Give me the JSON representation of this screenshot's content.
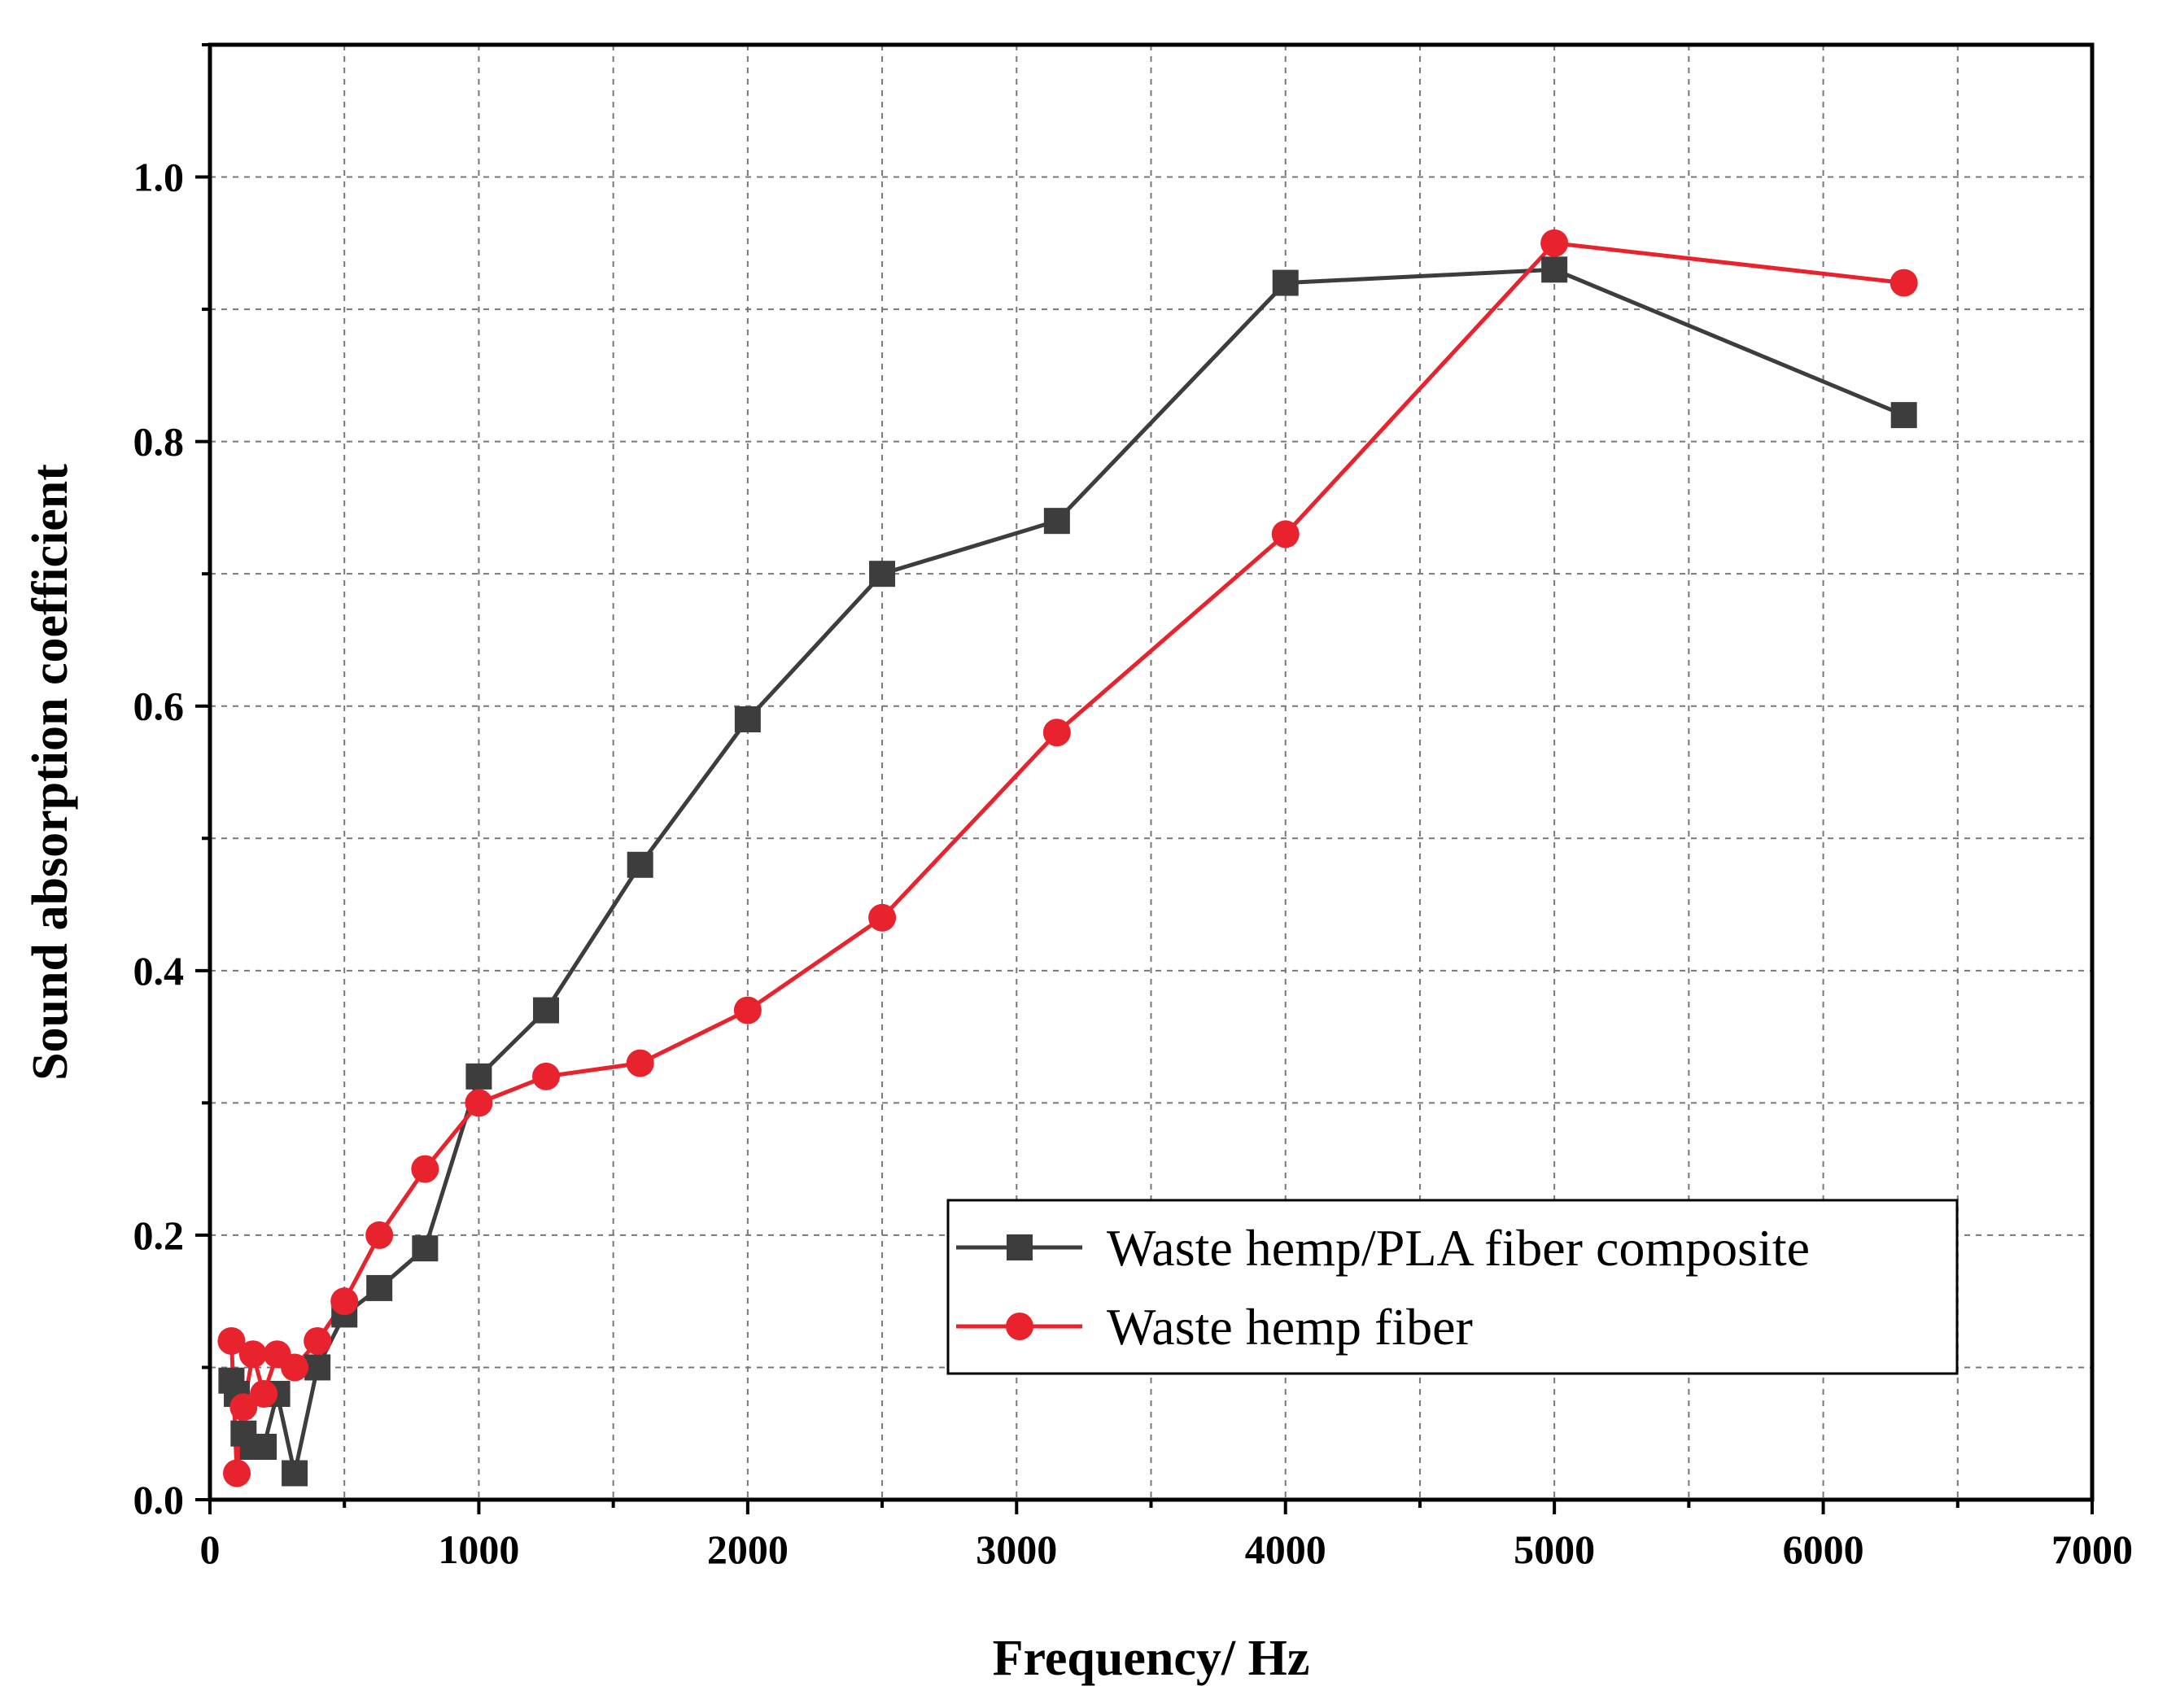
{
  "chart_data": {
    "type": "line",
    "title": "",
    "xlabel": "Frequency/ Hz",
    "ylabel": "Sound absorption coefficient",
    "xlim": [
      0,
      7000
    ],
    "ylim": [
      0,
      1.1
    ],
    "x_ticks": [
      0,
      1000,
      2000,
      3000,
      4000,
      5000,
      6000,
      7000
    ],
    "x_tick_labels": [
      "0",
      "1000",
      "2000",
      "3000",
      "4000",
      "5000",
      "6000",
      "7000"
    ],
    "y_ticks": [
      0.0,
      0.2,
      0.4,
      0.6,
      0.8,
      1.0
    ],
    "y_tick_labels": [
      "0.0",
      "0.2",
      "0.4",
      "0.6",
      "0.8",
      "1.0"
    ],
    "grid": true,
    "legend_position": "bottom-right",
    "series": [
      {
        "name": "Waste hemp/PLA fiber composite",
        "color": "#3d3d3d",
        "marker": "square",
        "x": [
          80,
          100,
          125,
          160,
          200,
          250,
          315,
          400,
          500,
          630,
          800,
          1000,
          1250,
          1600,
          2000,
          2500,
          3150,
          4000,
          5000,
          6300
        ],
        "y": [
          0.09,
          0.08,
          0.05,
          0.04,
          0.04,
          0.08,
          0.02,
          0.1,
          0.14,
          0.16,
          0.19,
          0.32,
          0.37,
          0.48,
          0.59,
          0.7,
          0.74,
          0.92,
          0.93,
          0.82
        ]
      },
      {
        "name": "Waste hemp fiber",
        "color": "#e8232d",
        "marker": "circle",
        "x": [
          80,
          100,
          125,
          160,
          200,
          250,
          315,
          400,
          500,
          630,
          800,
          1000,
          1250,
          1600,
          2000,
          2500,
          3150,
          4000,
          5000,
          6300
        ],
        "y": [
          0.12,
          0.02,
          0.07,
          0.11,
          0.08,
          0.11,
          0.1,
          0.12,
          0.15,
          0.2,
          0.25,
          0.3,
          0.32,
          0.33,
          0.37,
          0.44,
          0.58,
          0.73,
          0.95,
          0.92
        ]
      }
    ]
  }
}
